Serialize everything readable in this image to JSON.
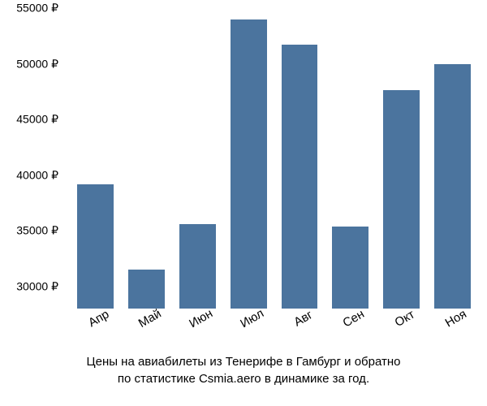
{
  "chart": {
    "type": "bar",
    "categories": [
      "Апр",
      "Май",
      "Июн",
      "Июл",
      "Авг",
      "Сен",
      "Окт",
      "Ноя"
    ],
    "values": [
      39200,
      31500,
      35600,
      54000,
      51700,
      35400,
      47600,
      50000
    ],
    "bar_color": "#4b749e",
    "background_color": "#ffffff",
    "y_axis": {
      "min": 28000,
      "max": 55000,
      "ticks": [
        30000,
        35000,
        40000,
        45000,
        50000,
        55000
      ],
      "tick_labels": [
        "30000 ₽",
        "35000 ₽",
        "40000 ₽",
        "45000 ₽",
        "50000 ₽",
        "55000 ₽"
      ],
      "label_fontsize": 14
    },
    "x_axis": {
      "label_fontsize": 15,
      "rotation": -30
    },
    "bar_gap": 18
  },
  "caption": {
    "line1": "Цены на авиабилеты из Тенерифе в Гамбург и обратно",
    "line2": "по статистике Csmia.aero в динамике за год."
  }
}
